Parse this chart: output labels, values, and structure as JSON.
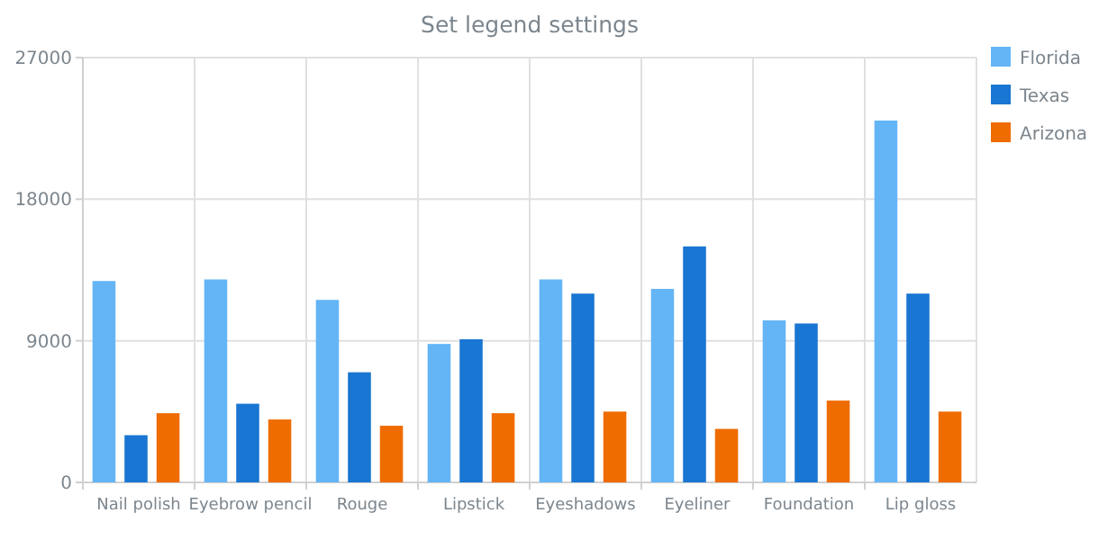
{
  "chart_data": {
    "type": "bar",
    "title": "Set legend settings",
    "categories": [
      "Nail polish",
      "Eyebrow pencil",
      "Rouge",
      "Lipstick",
      "Eyeshadows",
      "Eyeliner",
      "Foundation",
      "Lip gloss"
    ],
    "series": [
      {
        "name": "Florida",
        "color": "#64b5f6",
        "values": [
          12800,
          12900,
          11600,
          8800,
          12900,
          12300,
          10300,
          23000
        ]
      },
      {
        "name": "Texas",
        "color": "#1976d2",
        "values": [
          3000,
          5000,
          7000,
          9100,
          12000,
          15000,
          10100,
          12000
        ]
      },
      {
        "name": "Arizona",
        "color": "#ef6c00",
        "values": [
          4400,
          4000,
          3600,
          4400,
          4500,
          3400,
          5200,
          4500
        ]
      }
    ],
    "ylim": [
      0,
      27000
    ],
    "yticks": [
      0,
      9000,
      18000,
      27000
    ],
    "grid": true,
    "legend": "top right"
  }
}
